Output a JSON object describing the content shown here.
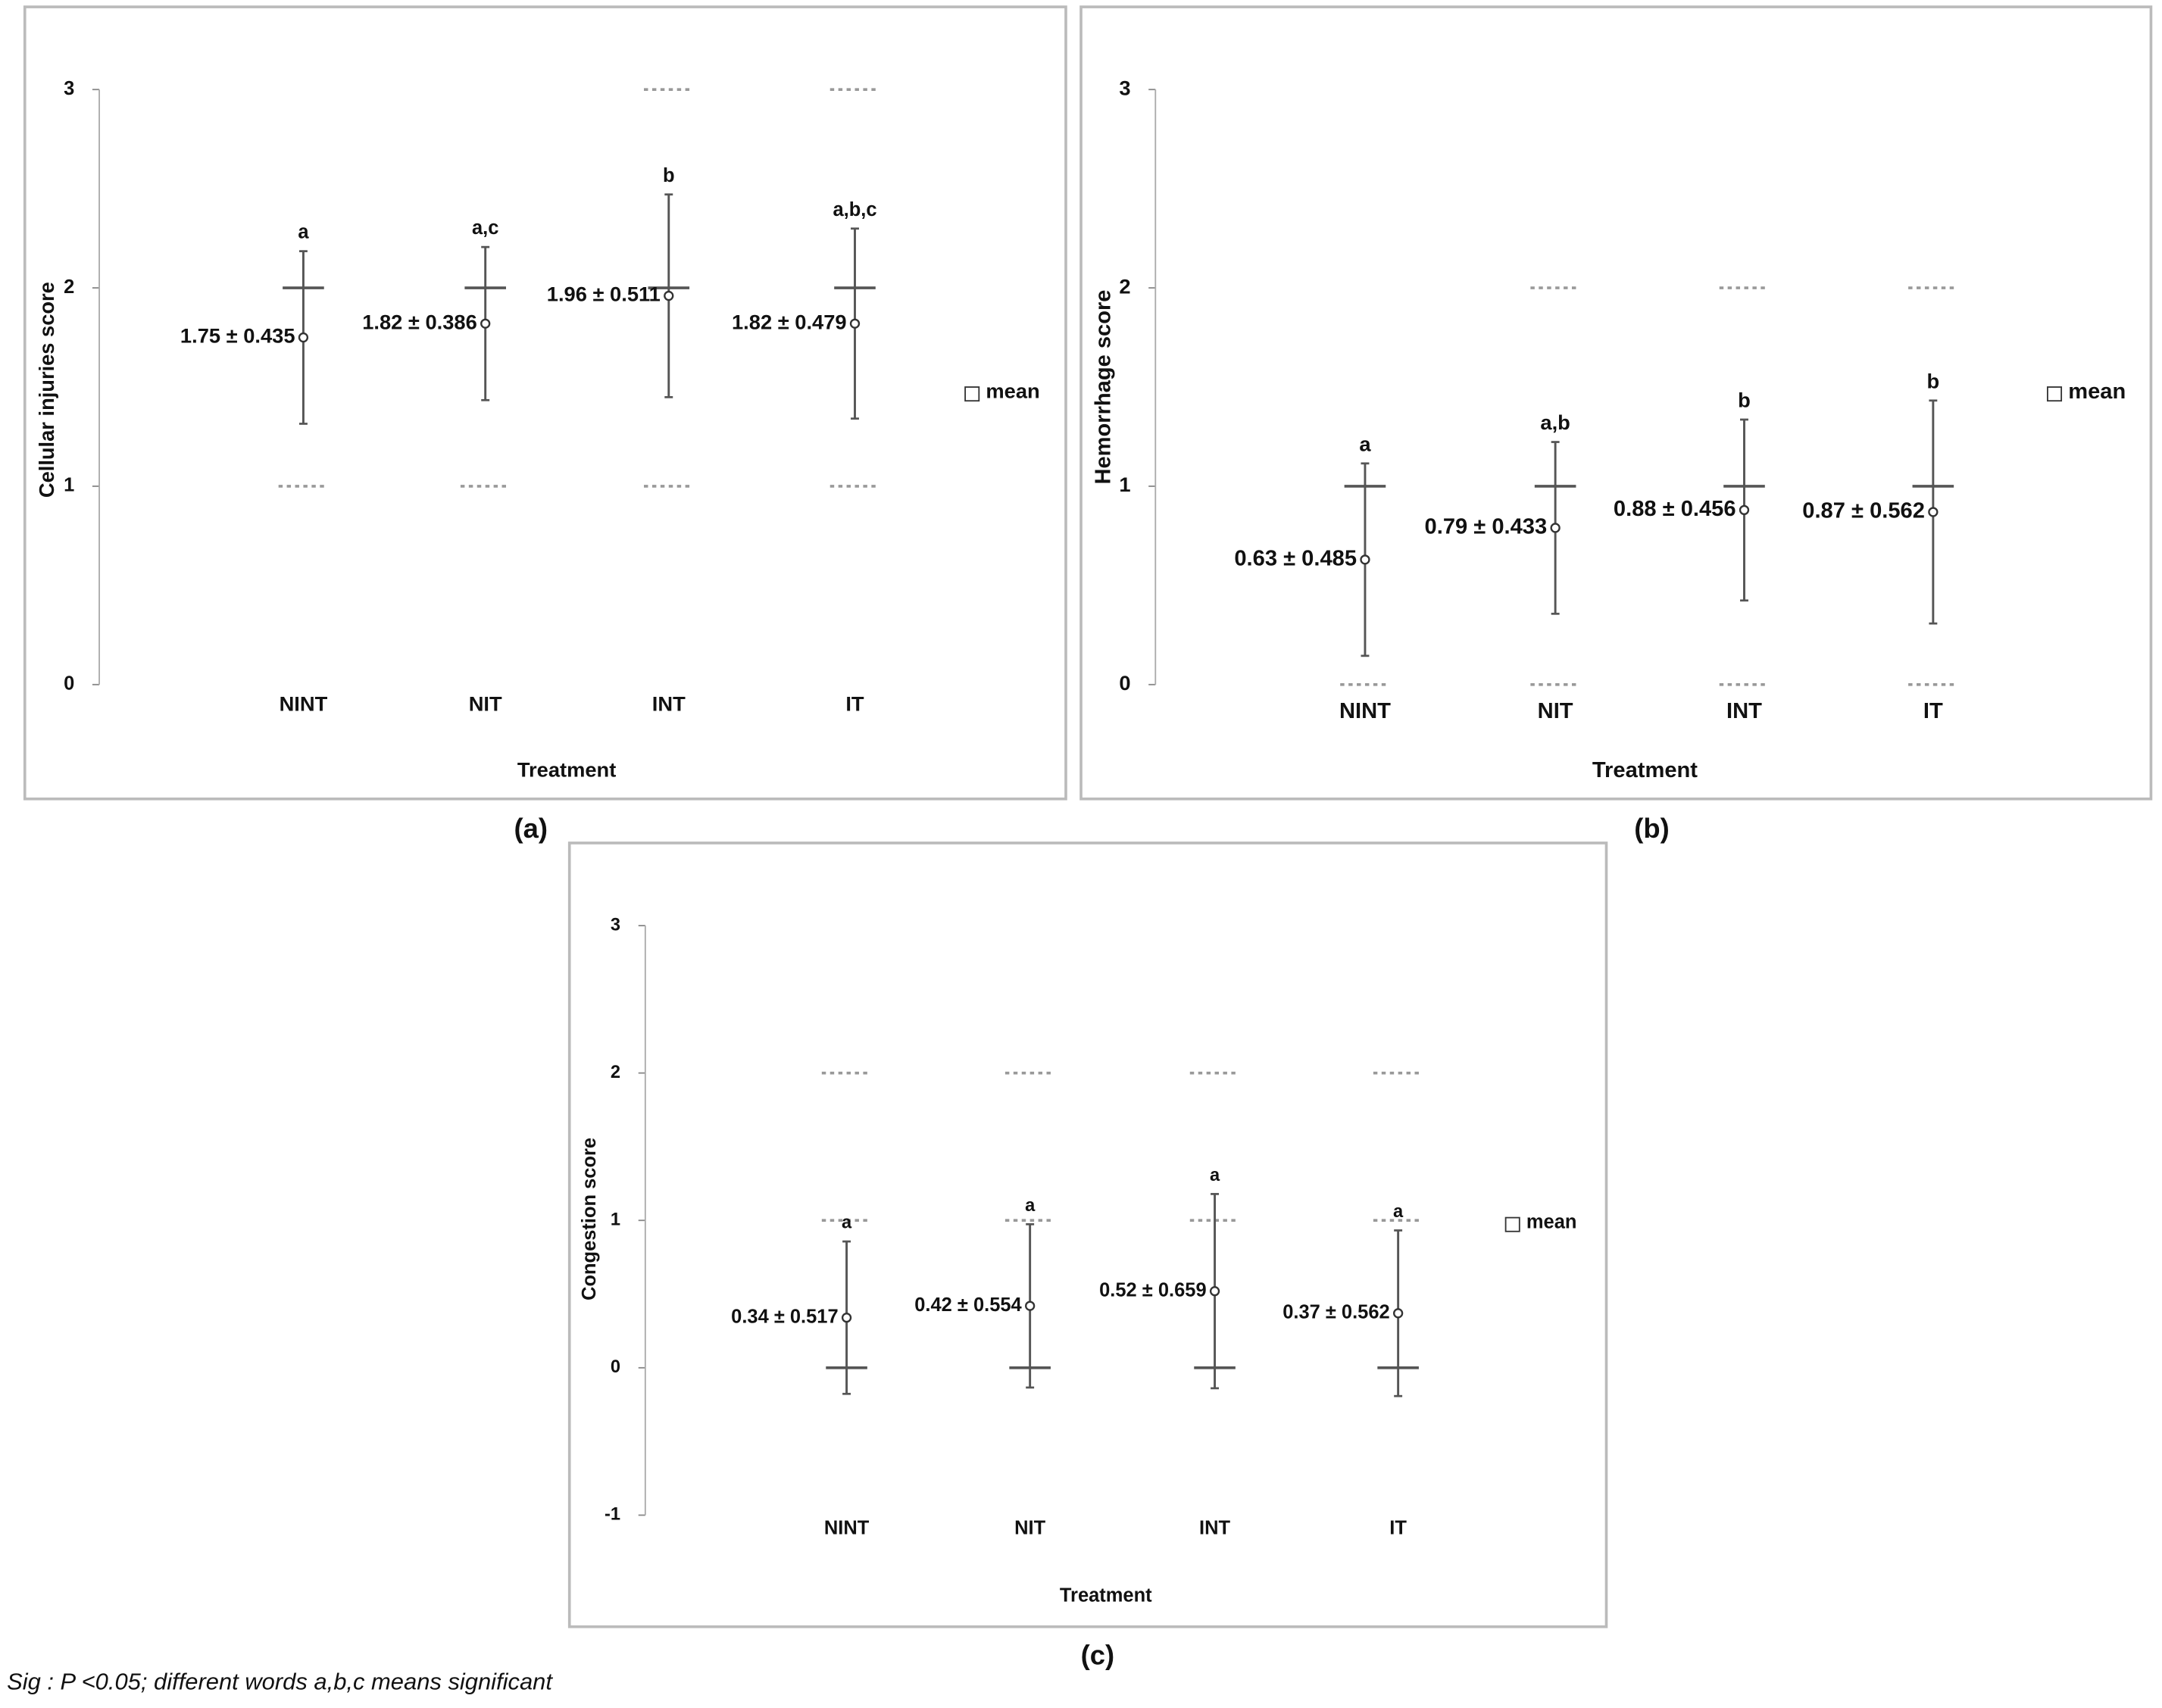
{
  "chart_data": [
    {
      "type": "errorbar",
      "panel_label": "(a)",
      "xlabel": "Treatment",
      "ylabel": "Cellular injuries score",
      "categories": [
        "NINT",
        "NIT",
        "INT",
        "IT"
      ],
      "ylim": [
        0,
        3
      ],
      "yticks": [
        0,
        1,
        2,
        3
      ],
      "series": [
        {
          "name": "mean",
          "color": "#555555",
          "values": [
            1.75,
            1.82,
            1.96,
            1.82
          ],
          "errors": [
            0.435,
            0.386,
            0.511,
            0.479
          ],
          "value_labels": [
            "1.75 ± 0.435",
            "1.82 ± 0.386",
            "1.96 ± 0.511",
            "1.82 ± 0.479"
          ]
        }
      ],
      "letters": [
        "a",
        "a,c",
        "b",
        "a,b,c"
      ],
      "medians": [
        2,
        2,
        2,
        2
      ],
      "levels": [
        [
          1
        ],
        [
          1
        ],
        [
          1,
          3
        ],
        [
          1,
          3
        ]
      ]
    },
    {
      "type": "errorbar",
      "panel_label": "(b)",
      "xlabel": "Treatment",
      "ylabel": "Hemorrhage score",
      "categories": [
        "NINT",
        "NIT",
        "INT",
        "IT"
      ],
      "ylim": [
        0,
        3
      ],
      "yticks": [
        0,
        1,
        2,
        3
      ],
      "series": [
        {
          "name": "mean",
          "color": "#555555",
          "values": [
            0.63,
            0.79,
            0.88,
            0.87
          ],
          "errors": [
            0.485,
            0.433,
            0.456,
            0.562
          ],
          "value_labels": [
            "0.63 ± 0.485",
            "0.79 ± 0.433",
            "0.88 ± 0.456",
            "0.87 ± 0.562"
          ]
        }
      ],
      "letters": [
        "a",
        "a,b",
        "b",
        "b"
      ],
      "medians": [
        1,
        1,
        1,
        1
      ],
      "levels": [
        [
          0
        ],
        [
          0,
          2
        ],
        [
          0,
          2
        ],
        [
          0,
          2
        ]
      ]
    },
    {
      "type": "errorbar",
      "panel_label": "(c)",
      "xlabel": "Treatment",
      "ylabel": "Congestion score",
      "categories": [
        "NINT",
        "NIT",
        "INT",
        "IT"
      ],
      "ylim": [
        -1,
        3
      ],
      "yticks": [
        -1,
        0,
        1,
        2,
        3
      ],
      "series": [
        {
          "name": "mean",
          "color": "#555555",
          "values": [
            0.34,
            0.42,
            0.52,
            0.37
          ],
          "errors": [
            0.517,
            0.554,
            0.659,
            0.562
          ],
          "value_labels": [
            "0.34 ± 0.517",
            "0.42 ± 0.554",
            "0.52 ± 0.659",
            "0.37 ± 0.562"
          ]
        }
      ],
      "letters": [
        "a",
        "a",
        "a",
        "a"
      ],
      "medians": [
        0,
        0,
        0,
        0
      ],
      "levels": [
        [
          1,
          2
        ],
        [
          1,
          2
        ],
        [
          1,
          2
        ],
        [
          1,
          2
        ]
      ]
    }
  ],
  "footnote": "Sig : P <0.05; different words a,b,c means significant"
}
